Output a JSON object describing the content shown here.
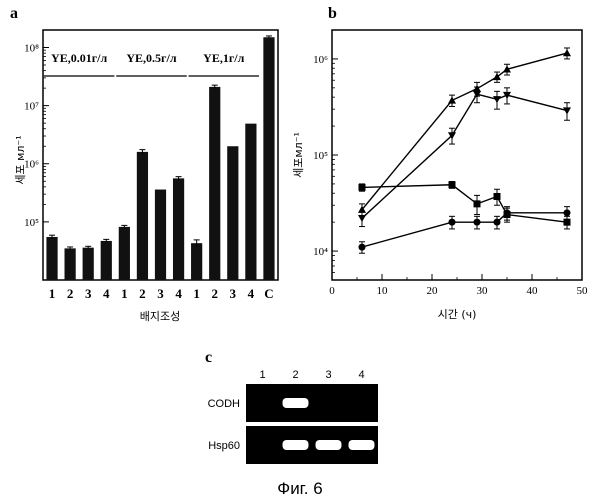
{
  "figure_caption": "Фиг. 6",
  "chart_data": [
    {
      "panel": "a",
      "type": "bar",
      "xlabel": "배지조성",
      "ylabel": "세포 мл⁻¹",
      "y_scale": "log",
      "ylim": [
        10000,
        200000000
      ],
      "yticks": [
        "10⁵",
        "10⁶",
        "10⁷",
        "10⁸"
      ],
      "ytick_values": [
        100000,
        1000000,
        10000000,
        100000000
      ],
      "categories": [
        "1",
        "2",
        "3",
        "4",
        "1",
        "2",
        "3",
        "4",
        "1",
        "2",
        "3",
        "4",
        "C"
      ],
      "values": [
        55000,
        35000,
        36000,
        47000,
        82000,
        1600000,
        360000,
        560000,
        43000,
        21000000,
        2000000,
        4900000,
        150000000
      ],
      "errors": [
        4000,
        2000,
        2000,
        3000,
        5000,
        150000,
        0,
        40000,
        6000,
        1500000,
        0,
        0,
        8000000
      ],
      "groups": [
        {
          "label": "YE,0.01г/л",
          "members": [
            0,
            1,
            2,
            3
          ]
        },
        {
          "label": "YE,0.5г/л",
          "members": [
            4,
            5,
            6,
            7
          ]
        },
        {
          "label": "YE,1г/л",
          "members": [
            8,
            9,
            10,
            11
          ]
        }
      ],
      "grid": false
    },
    {
      "panel": "b",
      "type": "line",
      "xlabel": "시간 (ч)",
      "ylabel": "세포мл⁻¹",
      "y_scale": "log",
      "xlim": [
        0,
        50
      ],
      "ylim": [
        5000,
        2000000
      ],
      "xticks": [
        "0",
        "10",
        "20",
        "30",
        "40",
        "50"
      ],
      "xtick_values": [
        0,
        10,
        20,
        30,
        40,
        50
      ],
      "yticks": [
        "10⁴",
        "10⁵",
        "10⁶"
      ],
      "ytick_values": [
        10000,
        100000,
        1000000
      ],
      "series": [
        {
          "marker": "triangle-up",
          "x": [
            6,
            24,
            29,
            33,
            35,
            47
          ],
          "y": [
            27000,
            370000,
            490000,
            650000,
            780000,
            1150000
          ],
          "err": [
            4000,
            50000,
            80000,
            80000,
            100000,
            150000
          ]
        },
        {
          "marker": "triangle-down",
          "x": [
            6,
            24,
            29,
            33,
            35,
            47
          ],
          "y": [
            22000,
            160000,
            430000,
            380000,
            420000,
            290000
          ],
          "err": [
            4000,
            30000,
            80000,
            80000,
            80000,
            60000
          ]
        },
        {
          "marker": "square",
          "x": [
            6,
            24,
            29,
            33,
            35,
            47
          ],
          "y": [
            46000,
            49000,
            31000,
            37000,
            24000,
            20000
          ],
          "err": [
            4000,
            4000,
            7000,
            7000,
            4000,
            3000
          ]
        },
        {
          "marker": "circle",
          "x": [
            6,
            24,
            29,
            33,
            35,
            47
          ],
          "y": [
            11000,
            20000,
            20000,
            20000,
            25000,
            25000
          ],
          "err": [
            1500,
            3000,
            3000,
            3000,
            4000,
            4000
          ]
        }
      ],
      "grid": false
    }
  ],
  "gel": {
    "panel": "c",
    "lanes": [
      "1",
      "2",
      "3",
      "4"
    ],
    "rows": [
      {
        "label": "CODH",
        "bands": [
          0,
          1,
          0,
          0
        ]
      },
      {
        "label": "Hsp60",
        "bands": [
          0,
          1,
          1,
          1
        ]
      }
    ],
    "background_color": "#000000",
    "band_color": "#ffffff"
  }
}
